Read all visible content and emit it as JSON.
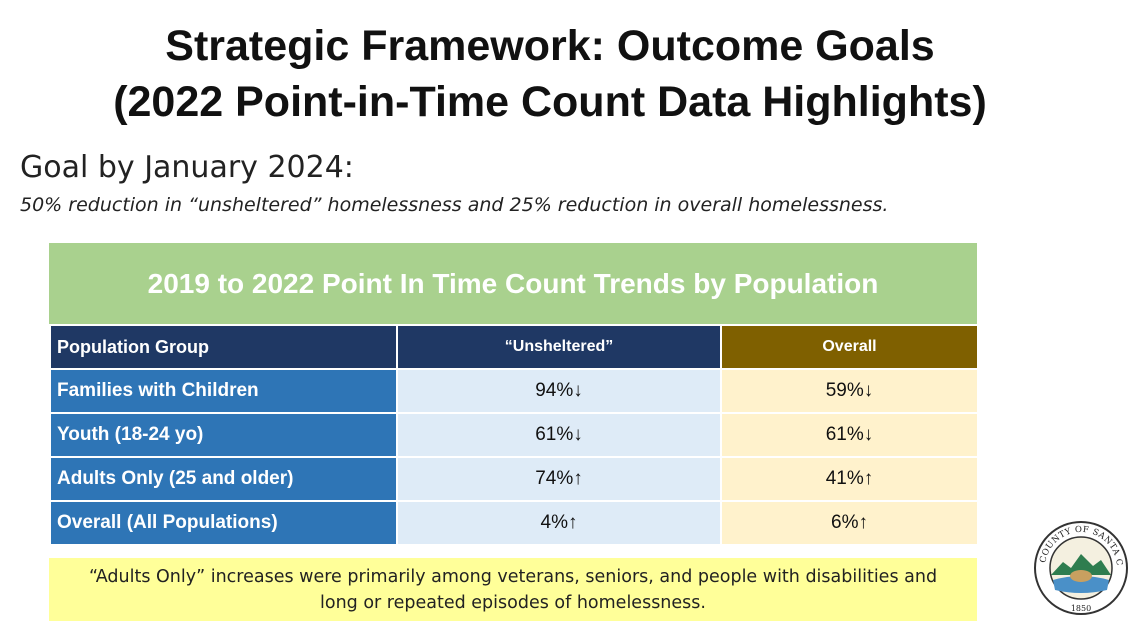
{
  "title": {
    "line1": "Strategic Framework: Outcome Goals",
    "line2": "(2022 Point-in-Time Count Data Highlights)"
  },
  "goal": {
    "heading": "Goal by January 2024:",
    "subtext": "50% reduction in “unsheltered” homelessness and 25% reduction in overall homelessness."
  },
  "table": {
    "banner": "2019 to 2022 Point In Time Count Trends by Population",
    "headers": [
      "Population Group",
      "“Unsheltered”",
      "Overall"
    ],
    "rows": [
      {
        "group": "Families with Children",
        "unsheltered": "94%↓",
        "overall": "59%↓"
      },
      {
        "group": "Youth (18-24 yo)",
        "unsheltered": "61%↓",
        "overall": "61%↓"
      },
      {
        "group": "Adults Only (25 and older)",
        "unsheltered": "74%↑",
        "overall": "41%↑"
      },
      {
        "group": "Overall (All Populations)",
        "unsheltered": "4%↑",
        "overall": "6%↑"
      }
    ]
  },
  "note": {
    "line1": "“Adults Only” increases were primarily among veterans, seniors, and people with disabilities and",
    "line2": "long or repeated episodes of homelessness."
  },
  "seal": {
    "text": "THE COUNTY OF SANTA CRUZ",
    "year": "1850",
    "icon": "county-seal-icon"
  },
  "colors": {
    "banner": "#a9d18e",
    "header_blue": "#1f3864",
    "header_gold": "#7f6000",
    "row_label": "#2e75b6",
    "unsheltered_cell": "#deebf7",
    "overall_cell": "#fff2cc",
    "note_bg": "#ffff99"
  }
}
